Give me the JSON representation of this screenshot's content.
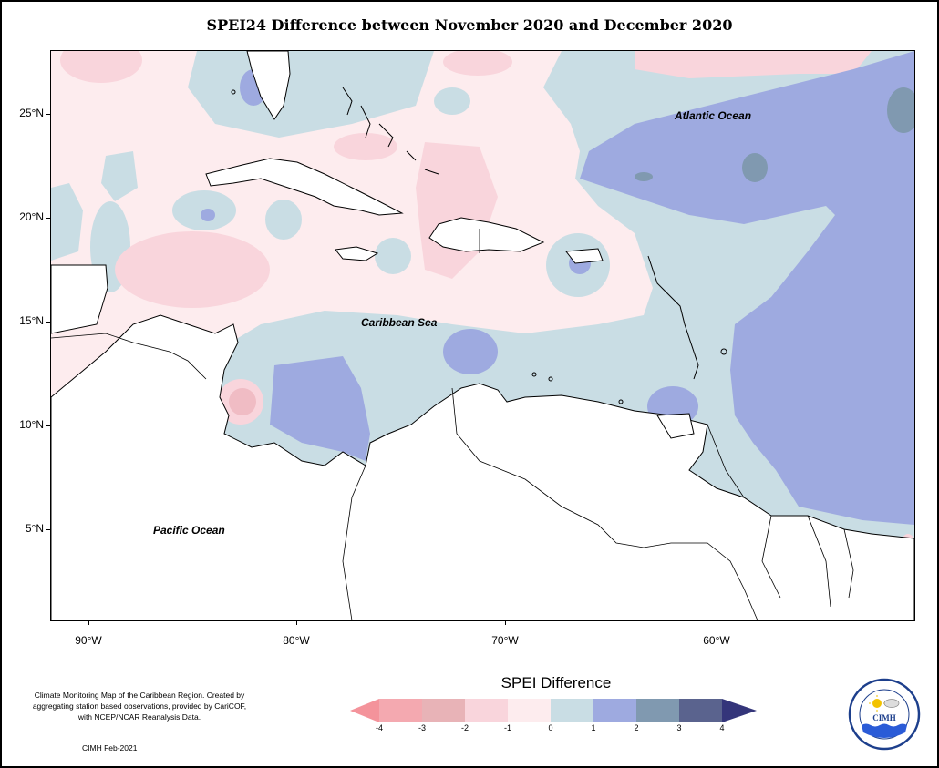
{
  "title": "SPEI24 Difference between November 2020 and December 2020",
  "map": {
    "labels": {
      "atlantic": "Atlantic Ocean",
      "caribbean": "Caribbean Sea",
      "pacific": "Pacific Ocean"
    },
    "lat_ticks": [
      "25°N",
      "20°N",
      "15°N",
      "10°N",
      "5°N"
    ],
    "lon_ticks": [
      "90°W",
      "80°W",
      "70°W",
      "60°W"
    ],
    "extent": {
      "lon": [
        -92,
        -50.5
      ],
      "lat": [
        1,
        28.5
      ]
    }
  },
  "legend": {
    "title": "SPEI Difference",
    "ticks": [
      "-4",
      "-3",
      "-2",
      "-1",
      "0",
      "1",
      "2",
      "3",
      "4"
    ],
    "colors": [
      "#f4939b",
      "#e8b3b7",
      "#f9d5dc",
      "#fdecee",
      "#c9dde4",
      "#9eaae0",
      "#8099b0",
      "#5a638e",
      "#34357a"
    ]
  },
  "footer": {
    "note": "Climate Monitoring Map of the Caribbean Region. Created by aggregating station based observations, provided by CariCOF, with NCEP/NCAR Reanalysis Data.",
    "credit": "CIMH Feb-2021"
  },
  "logo": {
    "text": "CIMH",
    "ring_text": "Caribbean Institute for Meteorology and Hydrology"
  }
}
